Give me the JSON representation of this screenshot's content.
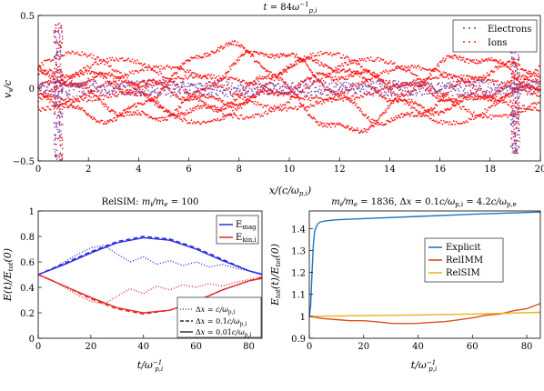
{
  "chart_data": [
    {
      "type": "scatter",
      "title": "t = 84ω_p,i⁻¹",
      "xlabel": "x/(c/ω_p,i)",
      "ylabel": "v_x/c",
      "xlim": [
        0,
        20
      ],
      "ylim": [
        -0.5,
        0.5
      ],
      "xticks": [
        0,
        2,
        4,
        6,
        8,
        10,
        12,
        14,
        16,
        18,
        20
      ],
      "yticks": [
        -0.5,
        0,
        0.5
      ],
      "legend_position": "top-right",
      "series": [
        {
          "name": "Electrons",
          "color": "#7b3fa0"
        },
        {
          "name": "Ions",
          "color": "#ff1a1a"
        }
      ],
      "bursts": [
        {
          "x": 0.8,
          "ymin": -0.5,
          "ymax": 0.45
        },
        {
          "x": 19.0,
          "ymin": -0.45,
          "ymax": 0.35
        }
      ],
      "ion_ribbons": [
        {
          "amp": 0.1,
          "phase": 0.0
        },
        {
          "amp": 0.18,
          "phase": 1.0
        },
        {
          "amp": 0.25,
          "phase": 2.1
        },
        {
          "amp": 0.3,
          "phase": 3.2
        }
      ],
      "electron_band_halfwidth": 0.06
    },
    {
      "type": "line",
      "title": "RelSIM: m_i/m_e = 100",
      "xlabel": "t/ω_p,i⁻¹",
      "ylabel": "E(t)/E_tot(0)",
      "xlim": [
        0,
        85
      ],
      "ylim": [
        0,
        1
      ],
      "xticks": [
        0,
        20,
        40,
        60,
        80
      ],
      "yticks": [
        0,
        0.2,
        0.4,
        0.6,
        0.8,
        1
      ],
      "legend_position": "top-right",
      "series": [
        {
          "name": "E_mag",
          "group": "mag",
          "style": "solid",
          "color": "#2b2be0",
          "x": [
            0,
            10,
            20,
            30,
            40,
            50,
            60,
            70,
            80,
            85
          ],
          "y": [
            0.5,
            0.58,
            0.67,
            0.75,
            0.79,
            0.77,
            0.7,
            0.61,
            0.53,
            0.5
          ]
        },
        {
          "name": "E_mag dashed",
          "group": "mag",
          "style": "dashed",
          "color": "#2b2be0",
          "x": [
            0,
            10,
            20,
            30,
            40,
            50,
            60,
            70,
            80,
            85
          ],
          "y": [
            0.5,
            0.59,
            0.68,
            0.76,
            0.8,
            0.78,
            0.71,
            0.62,
            0.53,
            0.5
          ]
        },
        {
          "name": "E_mag dotted",
          "group": "mag",
          "style": "dotted",
          "color": "#2b2be0",
          "x": [
            0,
            5,
            10,
            15,
            20,
            25,
            30,
            35,
            40,
            45,
            50,
            55,
            60,
            65,
            70,
            75,
            80,
            85
          ],
          "y": [
            0.5,
            0.54,
            0.6,
            0.66,
            0.71,
            0.73,
            0.66,
            0.6,
            0.64,
            0.58,
            0.61,
            0.57,
            0.6,
            0.56,
            0.58,
            0.55,
            0.53,
            0.51
          ]
        },
        {
          "name": "E_kin,i",
          "group": "kin",
          "style": "solid",
          "color": "#e02b2b",
          "x": [
            0,
            10,
            20,
            30,
            40,
            50,
            60,
            70,
            80,
            85
          ],
          "y": [
            0.5,
            0.41,
            0.32,
            0.24,
            0.2,
            0.22,
            0.29,
            0.38,
            0.45,
            0.47
          ]
        },
        {
          "name": "E_kin,i dashed",
          "group": "kin",
          "style": "dashed",
          "color": "#e02b2b",
          "x": [
            0,
            10,
            20,
            30,
            40,
            50,
            60,
            70,
            80,
            85
          ],
          "y": [
            0.5,
            0.41,
            0.31,
            0.23,
            0.19,
            0.22,
            0.29,
            0.38,
            0.45,
            0.48
          ]
        },
        {
          "name": "E_kin,i dotted",
          "group": "kin",
          "style": "dotted",
          "color": "#e02b2b",
          "x": [
            0,
            5,
            10,
            15,
            20,
            25,
            30,
            35,
            40,
            45,
            50,
            55,
            60,
            65,
            70,
            75,
            80,
            85
          ],
          "y": [
            0.5,
            0.46,
            0.4,
            0.34,
            0.29,
            0.27,
            0.33,
            0.39,
            0.35,
            0.41,
            0.38,
            0.42,
            0.4,
            0.43,
            0.41,
            0.44,
            0.46,
            0.48
          ]
        }
      ],
      "legend": [
        {
          "label": "E_mag",
          "color": "#2b2be0"
        },
        {
          "label": "E_kin,i",
          "color": "#e02b2b"
        }
      ],
      "style_legend": [
        {
          "label": "Δx = c/ω_p,i",
          "style": "dotted"
        },
        {
          "label": "Δx = 0.1c/ω_p,i",
          "style": "dashed"
        },
        {
          "label": "Δx = 0.01c/ω_p,i",
          "style": "solid"
        }
      ]
    },
    {
      "type": "line",
      "title": "m_i/m_e = 1836, Δx = 0.1c/ω_p,i = 4.2c/ω_p,e",
      "xlabel": "t/ω_p,i⁻¹",
      "ylabel": "E_tot(t)/E_tot(0)",
      "xlim": [
        0,
        85
      ],
      "ylim": [
        0.9,
        1.48
      ],
      "xticks": [
        0,
        20,
        40,
        60,
        80
      ],
      "yticks": [
        0.9,
        1,
        1.1,
        1.2,
        1.3,
        1.4
      ],
      "legend_position": "center-right",
      "series": [
        {
          "name": "Explicit",
          "color": "#1f77c4",
          "x": [
            0,
            0.5,
            1,
            1.5,
            2,
            3,
            4,
            6,
            10,
            20,
            40,
            60,
            85
          ],
          "y": [
            1.0,
            1.05,
            1.2,
            1.33,
            1.39,
            1.42,
            1.43,
            1.435,
            1.44,
            1.445,
            1.455,
            1.465,
            1.475
          ]
        },
        {
          "name": "RelIMM",
          "color": "#d95319",
          "x": [
            0,
            5,
            10,
            15,
            20,
            25,
            30,
            35,
            40,
            45,
            50,
            55,
            60,
            65,
            70,
            75,
            80,
            85
          ],
          "y": [
            1.0,
            0.99,
            0.985,
            0.98,
            0.98,
            0.975,
            0.968,
            0.967,
            0.968,
            0.972,
            0.976,
            0.984,
            0.993,
            1.005,
            1.01,
            1.025,
            1.035,
            1.058
          ]
        },
        {
          "name": "RelSIM",
          "color": "#edb120",
          "x": [
            0,
            20,
            40,
            60,
            85
          ],
          "y": [
            1.0,
            1.003,
            1.006,
            1.01,
            1.018
          ]
        }
      ]
    }
  ]
}
